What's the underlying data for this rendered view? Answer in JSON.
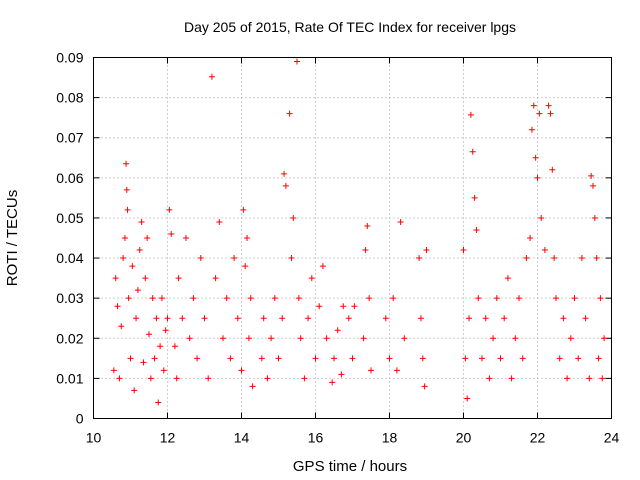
{
  "chart_data": {
    "type": "scatter",
    "title": "Day 205 of 2015, Rate Of TEC Index for receiver lpgs",
    "xlabel": "GPS time / hours",
    "ylabel": "ROTI / TECUs",
    "xlim": [
      10,
      24
    ],
    "ylim": [
      0,
      0.09
    ],
    "x_ticks": [
      10,
      12,
      14,
      16,
      18,
      20,
      22,
      24
    ],
    "x_tick_labels": [
      "10",
      "12",
      "14",
      "16",
      "18",
      "20",
      "22",
      "24"
    ],
    "y_ticks": [
      0,
      0.01,
      0.02,
      0.03,
      0.04,
      0.05,
      0.06,
      0.07,
      0.08,
      0.09
    ],
    "y_tick_labels": [
      "0",
      "0.01",
      "0.02",
      "0.03",
      "0.04",
      "0.05",
      "0.06",
      "0.07",
      "0.08",
      "0.09"
    ],
    "grid": true,
    "marker": "+",
    "color": "#ff0000",
    "series": [
      {
        "name": "ROTI",
        "points": [
          [
            10.55,
            0.012
          ],
          [
            10.6,
            0.035
          ],
          [
            10.65,
            0.028
          ],
          [
            10.7,
            0.01
          ],
          [
            10.75,
            0.023
          ],
          [
            10.8,
            0.04
          ],
          [
            10.85,
            0.045
          ],
          [
            10.88,
            0.0635
          ],
          [
            10.9,
            0.057
          ],
          [
            10.92,
            0.052
          ],
          [
            10.95,
            0.03
          ],
          [
            11.0,
            0.015
          ],
          [
            11.05,
            0.038
          ],
          [
            11.1,
            0.007
          ],
          [
            11.15,
            0.025
          ],
          [
            11.2,
            0.032
          ],
          [
            11.25,
            0.042
          ],
          [
            11.3,
            0.049
          ],
          [
            11.35,
            0.014
          ],
          [
            11.4,
            0.035
          ],
          [
            11.45,
            0.045
          ],
          [
            11.5,
            0.021
          ],
          [
            11.55,
            0.01
          ],
          [
            11.6,
            0.03
          ],
          [
            11.65,
            0.015
          ],
          [
            11.7,
            0.025
          ],
          [
            11.75,
            0.004
          ],
          [
            11.8,
            0.018
          ],
          [
            11.85,
            0.03
          ],
          [
            11.9,
            0.012
          ],
          [
            11.95,
            0.022
          ],
          [
            12.0,
            0.025
          ],
          [
            12.05,
            0.052
          ],
          [
            12.1,
            0.046
          ],
          [
            12.2,
            0.018
          ],
          [
            12.25,
            0.01
          ],
          [
            12.3,
            0.035
          ],
          [
            12.4,
            0.025
          ],
          [
            12.5,
            0.045
          ],
          [
            12.6,
            0.02
          ],
          [
            12.7,
            0.03
          ],
          [
            12.8,
            0.015
          ],
          [
            12.9,
            0.04
          ],
          [
            13.0,
            0.025
          ],
          [
            13.1,
            0.01
          ],
          [
            13.2,
            0.0852
          ],
          [
            13.3,
            0.035
          ],
          [
            13.4,
            0.049
          ],
          [
            13.5,
            0.02
          ],
          [
            13.6,
            0.03
          ],
          [
            13.7,
            0.015
          ],
          [
            13.8,
            0.04
          ],
          [
            13.9,
            0.025
          ],
          [
            14.0,
            0.012
          ],
          [
            14.05,
            0.052
          ],
          [
            14.1,
            0.038
          ],
          [
            14.15,
            0.045
          ],
          [
            14.2,
            0.02
          ],
          [
            14.25,
            0.03
          ],
          [
            14.3,
            0.008
          ],
          [
            14.55,
            0.015
          ],
          [
            14.6,
            0.025
          ],
          [
            14.7,
            0.01
          ],
          [
            14.8,
            0.02
          ],
          [
            14.9,
            0.03
          ],
          [
            15.0,
            0.015
          ],
          [
            15.1,
            0.025
          ],
          [
            15.15,
            0.061
          ],
          [
            15.2,
            0.058
          ],
          [
            15.3,
            0.076
          ],
          [
            15.35,
            0.04
          ],
          [
            15.4,
            0.05
          ],
          [
            15.5,
            0.089
          ],
          [
            15.55,
            0.03
          ],
          [
            15.6,
            0.02
          ],
          [
            15.7,
            0.01
          ],
          [
            15.8,
            0.025
          ],
          [
            15.9,
            0.035
          ],
          [
            16.0,
            0.015
          ],
          [
            16.1,
            0.028
          ],
          [
            16.2,
            0.038
          ],
          [
            16.3,
            0.02
          ],
          [
            16.45,
            0.009
          ],
          [
            16.5,
            0.015
          ],
          [
            16.6,
            0.022
          ],
          [
            16.7,
            0.011
          ],
          [
            16.75,
            0.028
          ],
          [
            16.9,
            0.025
          ],
          [
            17.0,
            0.015
          ],
          [
            17.05,
            0.028
          ],
          [
            17.3,
            0.02
          ],
          [
            17.35,
            0.042
          ],
          [
            17.4,
            0.048
          ],
          [
            17.45,
            0.03
          ],
          [
            17.5,
            0.012
          ],
          [
            17.9,
            0.025
          ],
          [
            18.0,
            0.015
          ],
          [
            18.1,
            0.03
          ],
          [
            18.2,
            0.012
          ],
          [
            18.3,
            0.049
          ],
          [
            18.4,
            0.02
          ],
          [
            18.8,
            0.04
          ],
          [
            18.85,
            0.025
          ],
          [
            18.9,
            0.015
          ],
          [
            18.95,
            0.008
          ],
          [
            19.0,
            0.042
          ],
          [
            20.0,
            0.042
          ],
          [
            20.05,
            0.015
          ],
          [
            20.1,
            0.005
          ],
          [
            20.15,
            0.025
          ],
          [
            20.2,
            0.0757
          ],
          [
            20.25,
            0.0665
          ],
          [
            20.3,
            0.055
          ],
          [
            20.35,
            0.047
          ],
          [
            20.4,
            0.03
          ],
          [
            20.5,
            0.015
          ],
          [
            20.6,
            0.025
          ],
          [
            20.7,
            0.01
          ],
          [
            20.8,
            0.02
          ],
          [
            20.9,
            0.03
          ],
          [
            21.0,
            0.015
          ],
          [
            21.1,
            0.025
          ],
          [
            21.2,
            0.035
          ],
          [
            21.3,
            0.01
          ],
          [
            21.4,
            0.02
          ],
          [
            21.5,
            0.03
          ],
          [
            21.6,
            0.015
          ],
          [
            21.7,
            0.04
          ],
          [
            21.8,
            0.045
          ],
          [
            21.85,
            0.072
          ],
          [
            21.9,
            0.078
          ],
          [
            21.95,
            0.065
          ],
          [
            22.0,
            0.06
          ],
          [
            22.05,
            0.076
          ],
          [
            22.1,
            0.05
          ],
          [
            22.2,
            0.042
          ],
          [
            22.3,
            0.078
          ],
          [
            22.35,
            0.076
          ],
          [
            22.4,
            0.062
          ],
          [
            22.45,
            0.04
          ],
          [
            22.5,
            0.03
          ],
          [
            22.6,
            0.015
          ],
          [
            22.7,
            0.025
          ],
          [
            22.8,
            0.01
          ],
          [
            22.9,
            0.02
          ],
          [
            23.0,
            0.03
          ],
          [
            23.1,
            0.015
          ],
          [
            23.2,
            0.04
          ],
          [
            23.3,
            0.025
          ],
          [
            23.4,
            0.01
          ],
          [
            23.45,
            0.0605
          ],
          [
            23.5,
            0.058
          ],
          [
            23.55,
            0.05
          ],
          [
            23.6,
            0.04
          ],
          [
            23.65,
            0.015
          ],
          [
            23.7,
            0.03
          ],
          [
            23.75,
            0.01
          ],
          [
            23.8,
            0.02
          ]
        ]
      }
    ]
  }
}
